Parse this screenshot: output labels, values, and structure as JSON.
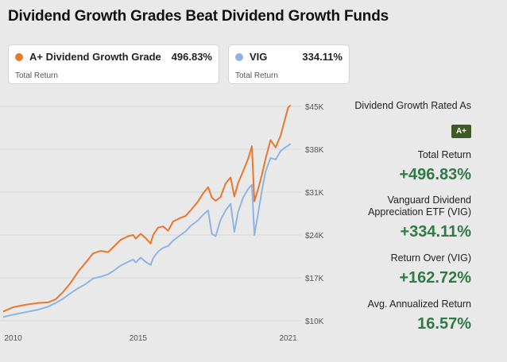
{
  "title": "Dividend Growth Grades Beat Dividend Growth Funds",
  "cards": [
    {
      "name": "A+  Dividend Growth Grade",
      "value": "496.83%",
      "sub": "Total Return",
      "color": "#e8772e"
    },
    {
      "name": "VIG",
      "value": "334.11%",
      "sub": "Total Return",
      "color": "#8fb4e3"
    }
  ],
  "panel": {
    "rated_label": "Dividend Growth Rated As",
    "rated_badge": "A+",
    "total_return_label": "Total Return",
    "total_return_value": "+496.83%",
    "vig_label_1": "Vanguard Dividend",
    "vig_label_2": "Appreciation ETF (VIG)",
    "vig_value": "+334.11%",
    "over_label": "Return Over (VIG)",
    "over_value": "+162.72%",
    "annual_label": "Avg. Annualized Return",
    "annual_value": "16.57%"
  },
  "chart_data": {
    "type": "line",
    "title": "",
    "xlabel": "",
    "ylabel": "",
    "xlim": [
      2009.6,
      2021.3
    ],
    "ylim": [
      10000,
      45000
    ],
    "y_ticks": [
      10000,
      17000,
      24000,
      31000,
      38000,
      45000
    ],
    "y_tick_labels": [
      "$10K",
      "$17K",
      "$24K",
      "$31K",
      "$38K",
      "$45K"
    ],
    "x_ticks": [
      2010,
      2015,
      2021
    ],
    "x_tick_labels": [
      "2010",
      "2015",
      "2021"
    ],
    "series": [
      {
        "name": "A+ Dividend Growth Grade",
        "color": "#e8772e",
        "points": [
          [
            2009.6,
            11500
          ],
          [
            2010.0,
            12200
          ],
          [
            2010.5,
            12600
          ],
          [
            2011.0,
            12900
          ],
          [
            2011.4,
            13000
          ],
          [
            2011.7,
            13500
          ],
          [
            2012.0,
            14700
          ],
          [
            2012.3,
            16200
          ],
          [
            2012.6,
            18000
          ],
          [
            2012.9,
            19500
          ],
          [
            2013.2,
            21000
          ],
          [
            2013.5,
            21400
          ],
          [
            2013.8,
            21200
          ],
          [
            2014.0,
            22000
          ],
          [
            2014.3,
            23200
          ],
          [
            2014.6,
            23800
          ],
          [
            2014.8,
            24000
          ],
          [
            2014.9,
            23400
          ],
          [
            2015.1,
            24200
          ],
          [
            2015.3,
            23500
          ],
          [
            2015.5,
            22600
          ],
          [
            2015.6,
            24000
          ],
          [
            2015.8,
            25200
          ],
          [
            2016.0,
            25400
          ],
          [
            2016.2,
            24700
          ],
          [
            2016.4,
            26200
          ],
          [
            2016.7,
            26800
          ],
          [
            2016.9,
            27100
          ],
          [
            2017.1,
            28000
          ],
          [
            2017.4,
            29500
          ],
          [
            2017.6,
            30800
          ],
          [
            2017.8,
            31800
          ],
          [
            2017.95,
            30100
          ],
          [
            2018.1,
            29600
          ],
          [
            2018.3,
            30200
          ],
          [
            2018.5,
            32400
          ],
          [
            2018.7,
            33400
          ],
          [
            2018.85,
            30300
          ],
          [
            2019.0,
            32500
          ],
          [
            2019.2,
            34400
          ],
          [
            2019.4,
            36400
          ],
          [
            2019.55,
            38500
          ],
          [
            2019.65,
            29500
          ],
          [
            2019.8,
            31500
          ],
          [
            2019.95,
            33800
          ],
          [
            2020.1,
            36500
          ],
          [
            2020.3,
            39500
          ],
          [
            2020.5,
            38300
          ],
          [
            2020.7,
            40200
          ],
          [
            2020.85,
            42500
          ],
          [
            2021.0,
            44800
          ],
          [
            2021.1,
            45200
          ]
        ]
      },
      {
        "name": "VIG",
        "color": "#8fb4e3",
        "points": [
          [
            2009.6,
            10600
          ],
          [
            2010.0,
            11000
          ],
          [
            2010.5,
            11400
          ],
          [
            2011.0,
            11800
          ],
          [
            2011.4,
            12300
          ],
          [
            2011.7,
            12900
          ],
          [
            2012.0,
            13600
          ],
          [
            2012.3,
            14500
          ],
          [
            2012.6,
            15300
          ],
          [
            2012.9,
            16000
          ],
          [
            2013.2,
            16900
          ],
          [
            2013.5,
            17200
          ],
          [
            2013.8,
            17600
          ],
          [
            2014.0,
            18100
          ],
          [
            2014.3,
            19000
          ],
          [
            2014.6,
            19600
          ],
          [
            2014.8,
            20000
          ],
          [
            2014.9,
            19500
          ],
          [
            2015.1,
            20300
          ],
          [
            2015.3,
            19600
          ],
          [
            2015.5,
            19100
          ],
          [
            2015.6,
            20200
          ],
          [
            2015.8,
            21300
          ],
          [
            2016.0,
            21900
          ],
          [
            2016.2,
            22200
          ],
          [
            2016.4,
            23100
          ],
          [
            2016.7,
            24000
          ],
          [
            2016.9,
            24600
          ],
          [
            2017.1,
            25500
          ],
          [
            2017.4,
            26400
          ],
          [
            2017.6,
            27300
          ],
          [
            2017.8,
            28000
          ],
          [
            2017.95,
            24200
          ],
          [
            2018.1,
            23800
          ],
          [
            2018.3,
            26500
          ],
          [
            2018.5,
            28000
          ],
          [
            2018.7,
            29100
          ],
          [
            2018.85,
            24500
          ],
          [
            2019.0,
            27800
          ],
          [
            2019.2,
            30100
          ],
          [
            2019.4,
            31500
          ],
          [
            2019.55,
            32200
          ],
          [
            2019.65,
            24000
          ],
          [
            2019.8,
            27500
          ],
          [
            2019.95,
            31200
          ],
          [
            2020.1,
            34400
          ],
          [
            2020.3,
            36600
          ],
          [
            2020.5,
            36300
          ],
          [
            2020.7,
            37700
          ],
          [
            2020.85,
            38200
          ],
          [
            2021.0,
            38600
          ],
          [
            2021.1,
            38900
          ]
        ]
      }
    ]
  }
}
